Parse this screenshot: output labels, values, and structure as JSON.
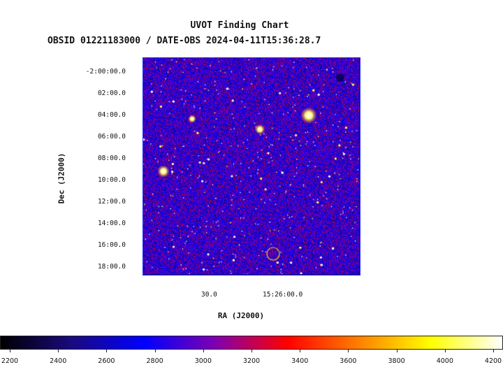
{
  "chart_data": {
    "type": "heatmap",
    "title": "UVOT Finding Chart",
    "subtitle": "OBSID 01221183000 / DATE-OBS 2024-04-11T15:36:28.7",
    "xlabel": "RA (J2000)",
    "ylabel": "Dec (J2000)",
    "x_ticks": [
      "30.0",
      "15:26:00.0"
    ],
    "y_ticks": [
      "-2:00:00.0",
      "02:00.0",
      "04:00.0",
      "06:00.0",
      "08:00.0",
      "10:00.0",
      "12:00.0",
      "14:00.0",
      "16:00.0",
      "18:00.0"
    ],
    "colorbar": {
      "ticks": [
        "2200",
        "2400",
        "2600",
        "2800",
        "3000",
        "3200",
        "3400",
        "3600",
        "3800",
        "4000",
        "4200"
      ],
      "range": [
        2200,
        4200
      ],
      "colormap": [
        "#000000",
        "#1a0a80",
        "#0000ff",
        "#8000b0",
        "#ff0000",
        "#ff8000",
        "#ffff00",
        "#ffffff"
      ]
    },
    "frame_color": "#1e28ff"
  }
}
